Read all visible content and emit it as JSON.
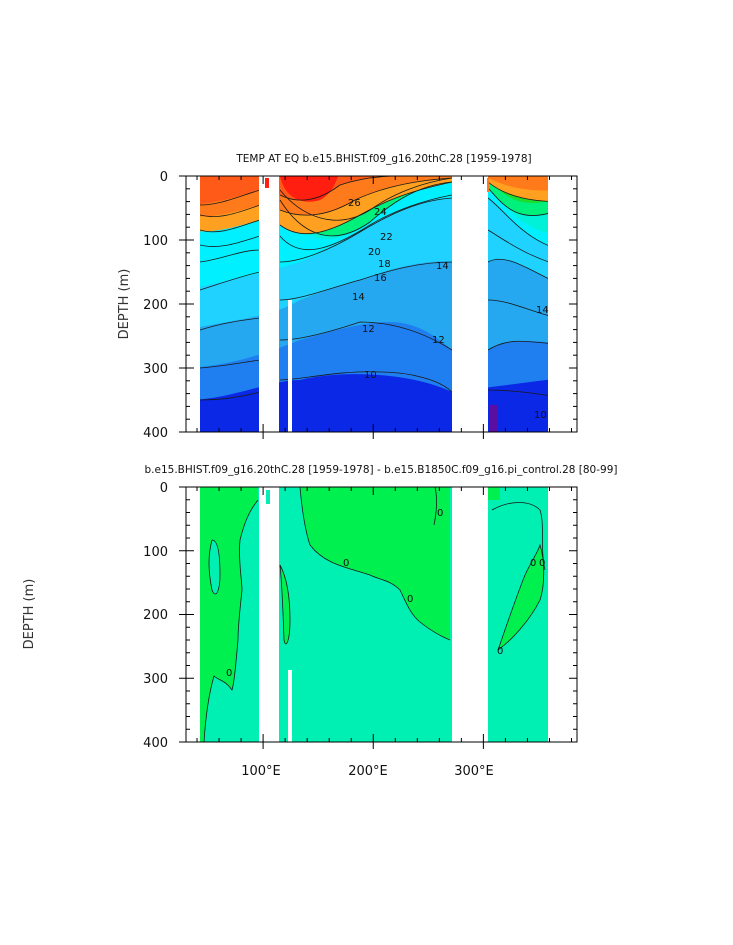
{
  "chart_data": [
    {
      "type": "contour",
      "title": "TEMP AT EQ  b.e15.BHIST.f09_g16.20thC.28  [1959-1978]",
      "ylabel": "DEPTH (m)",
      "ylim": [
        0,
        400
      ],
      "y_inverted": true,
      "yticks": [
        "0",
        "100",
        "200",
        "300",
        "400"
      ],
      "xlim": [
        30,
        385
      ],
      "xticks": [],
      "land_gaps_lon": [
        [
          97,
          112
        ],
        [
          124,
          128
        ],
        [
          131,
          134
        ],
        [
          277,
          315
        ]
      ],
      "colors": [
        "#5a0fa0",
        "#0a28e6",
        "#1f7ff0",
        "#25a8f0",
        "#1fd2ff",
        "#00f0ff",
        "#00f0d8",
        "#00f07c",
        "#1cdc2c",
        "#a8ff00",
        "#ffff00",
        "#ffcc33",
        "#ffa020",
        "#ff7a1a",
        "#ff5a18",
        "#ff1e10"
      ],
      "contour_labels": [
        "26",
        "24",
        "22",
        "20",
        "18",
        "16",
        "14",
        "14",
        "14",
        "12",
        "12",
        "10",
        "10"
      ]
    },
    {
      "type": "contour",
      "title": "b.e15.BHIST.f09_g16.20thC.28  [1959-1978]  -  b.e15.B1850C.f09_g16.pi_control.28  [80-99]",
      "ylabel": "DEPTH (m)",
      "ylim": [
        0,
        400
      ],
      "y_inverted": true,
      "yticks": [
        "0",
        "100",
        "200",
        "300",
        "400"
      ],
      "xlim": [
        30,
        385
      ],
      "xticks": [
        "100°E",
        "200°E",
        "300°E"
      ],
      "land_gaps_lon": [
        [
          97,
          112
        ],
        [
          124,
          128
        ],
        [
          131,
          134
        ],
        [
          277,
          315
        ]
      ],
      "colors": {
        "positive": "#00f050",
        "negative": "#00f0b4"
      },
      "contour_labels": [
        "0",
        "0",
        "0",
        "0",
        "0",
        "0",
        "0"
      ]
    }
  ]
}
